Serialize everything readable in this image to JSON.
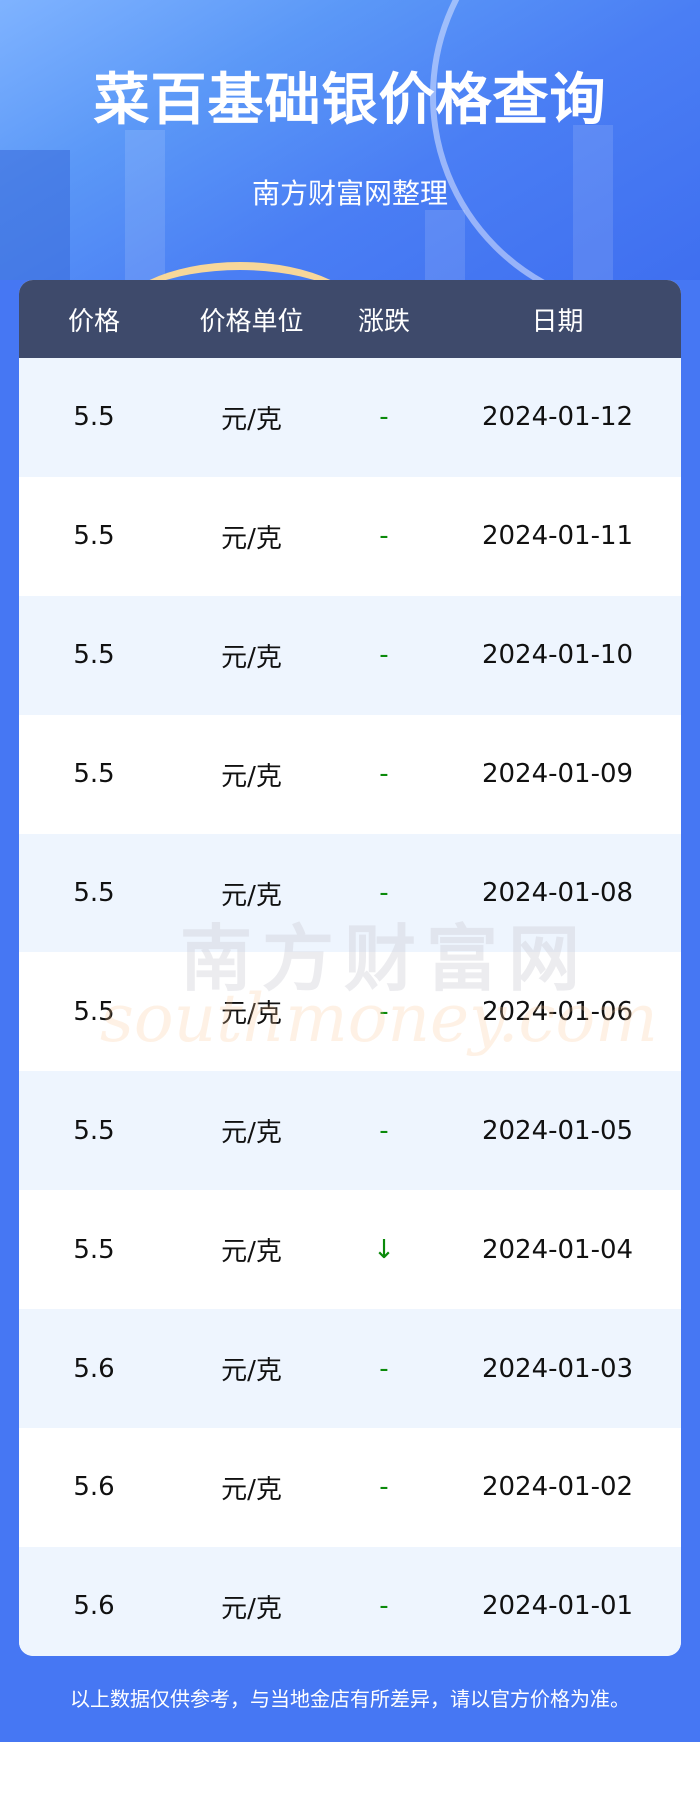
{
  "header": {
    "title": "菜百基础银价格查询",
    "subtitle": "南方财富网整理"
  },
  "table": {
    "columns": [
      "价格",
      "价格单位",
      "涨跌",
      "日期"
    ],
    "rows": [
      {
        "price": "5.5",
        "unit": "元/克",
        "change": "-",
        "date": "2024-01-12"
      },
      {
        "price": "5.5",
        "unit": "元/克",
        "change": "-",
        "date": "2024-01-11"
      },
      {
        "price": "5.5",
        "unit": "元/克",
        "change": "-",
        "date": "2024-01-10"
      },
      {
        "price": "5.5",
        "unit": "元/克",
        "change": "-",
        "date": "2024-01-09"
      },
      {
        "price": "5.5",
        "unit": "元/克",
        "change": "-",
        "date": "2024-01-08"
      },
      {
        "price": "5.5",
        "unit": "元/克",
        "change": "-",
        "date": "2024-01-06"
      },
      {
        "price": "5.5",
        "unit": "元/克",
        "change": "-",
        "date": "2024-01-05"
      },
      {
        "price": "5.5",
        "unit": "元/克",
        "change": "↓",
        "date": "2024-01-04"
      },
      {
        "price": "5.6",
        "unit": "元/克",
        "change": "-",
        "date": "2024-01-03"
      },
      {
        "price": "5.6",
        "unit": "元/克",
        "change": "-",
        "date": "2024-01-02"
      },
      {
        "price": "5.6",
        "unit": "元/克",
        "change": "-",
        "date": "2024-01-01"
      }
    ]
  },
  "watermark": {
    "cn": "南方财富网",
    "en": "southmoney.com"
  },
  "footer": {
    "disclaimer": "以上数据仅供参考，与当地金店有所差异，请以官方价格为准。"
  },
  "colors": {
    "brand_blue": "#4677f3",
    "table_header": "#3e4a6b",
    "change_color": "#0a8a0a"
  }
}
